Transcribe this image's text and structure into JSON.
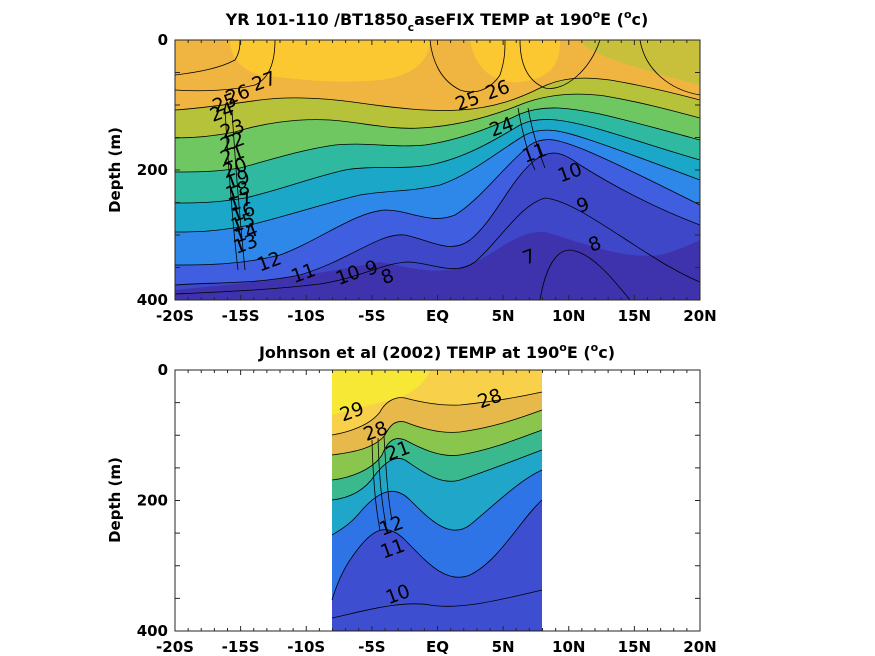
{
  "chart_data": [
    {
      "type": "heatmap",
      "title_parts": {
        "a": "YR 101-110 /BT1850",
        "b": "c",
        "c": "aseFIX TEMP at 190",
        "d": "o",
        "e": "E (",
        "f": "o",
        "g": "c)"
      },
      "ylabel": "Depth (m)",
      "xticks": [
        "-20S",
        "-15S",
        "-10S",
        "-5S",
        "EQ",
        "5N",
        "10N",
        "15N",
        "20N"
      ],
      "yticks": [
        "0",
        "200",
        "400"
      ],
      "xlim": [
        -20,
        20
      ],
      "ylim": [
        0,
        400
      ],
      "data_extent": [
        -20,
        20
      ],
      "color_range_degC": [
        6,
        30
      ],
      "contour_labels": [
        {
          "text": "27",
          "x": -13.2,
          "y": 65
        },
        {
          "text": "26",
          "x": -15.2,
          "y": 85
        },
        {
          "text": "25",
          "x": -16.2,
          "y": 98
        },
        {
          "text": "24",
          "x": -16.4,
          "y": 112
        },
        {
          "text": "23",
          "x": -15.6,
          "y": 138
        },
        {
          "text": "22",
          "x": -15.6,
          "y": 158
        },
        {
          "text": "21",
          "x": -15.6,
          "y": 178
        },
        {
          "text": "20",
          "x": -15.4,
          "y": 198
        },
        {
          "text": "19",
          "x": -15.2,
          "y": 216
        },
        {
          "text": "18",
          "x": -15.2,
          "y": 233
        },
        {
          "text": "17",
          "x": -15.0,
          "y": 250
        },
        {
          "text": "16",
          "x": -14.8,
          "y": 266
        },
        {
          "text": "15",
          "x": -14.8,
          "y": 282
        },
        {
          "text": "14",
          "x": -14.6,
          "y": 298
        },
        {
          "text": "13",
          "x": -14.6,
          "y": 315
        },
        {
          "text": "12",
          "x": -12.8,
          "y": 342
        },
        {
          "text": "11",
          "x": -10.2,
          "y": 360
        },
        {
          "text": "10",
          "x": -6.8,
          "y": 363
        },
        {
          "text": "9",
          "x": -5.0,
          "y": 352
        },
        {
          "text": "8",
          "x": -3.8,
          "y": 365
        },
        {
          "text": "25",
          "x": 2.3,
          "y": 95
        },
        {
          "text": "26",
          "x": 4.6,
          "y": 78
        },
        {
          "text": "24",
          "x": 4.9,
          "y": 135
        },
        {
          "text": "11",
          "x": 7.4,
          "y": 175
        },
        {
          "text": "10",
          "x": 10.1,
          "y": 205
        },
        {
          "text": "9",
          "x": 11.1,
          "y": 255
        },
        {
          "text": "8",
          "x": 12.0,
          "y": 315
        },
        {
          "text": "7",
          "x": 7.0,
          "y": 335
        }
      ]
    },
    {
      "type": "heatmap",
      "title_parts": {
        "a": "Johnson et al (2002) TEMP at 190",
        "b": "o",
        "c": "E (",
        "d": "o",
        "e": "c)"
      },
      "ylabel": "Depth (m)",
      "xticks": [
        "-20S",
        "-15S",
        "-10S",
        "-5S",
        "EQ",
        "5N",
        "10N",
        "15N",
        "20N"
      ],
      "yticks": [
        "0",
        "200",
        "400"
      ],
      "xlim": [
        -20,
        20
      ],
      "ylim": [
        0,
        400
      ],
      "data_extent": [
        -8,
        8
      ],
      "color_range_degC": [
        6,
        30
      ],
      "contour_labels": [
        {
          "text": "29",
          "x": -6.5,
          "y": 65
        },
        {
          "text": "28",
          "x": -4.7,
          "y": 95
        },
        {
          "text": "28",
          "x": 4.0,
          "y": 45
        },
        {
          "text": "21",
          "x": -3.0,
          "y": 125
        },
        {
          "text": "12",
          "x": -3.5,
          "y": 240
        },
        {
          "text": "11",
          "x": -3.4,
          "y": 275
        },
        {
          "text": "10",
          "x": -3.0,
          "y": 345
        }
      ]
    }
  ]
}
